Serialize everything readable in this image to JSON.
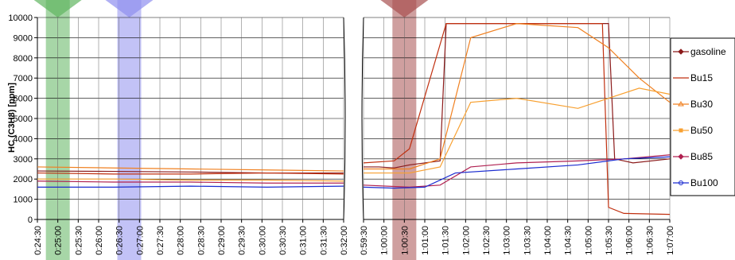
{
  "chart_data": {
    "type": "line",
    "ylabel": "HC (C3H8) [ppm]",
    "ylim": [
      0,
      10000
    ],
    "y_ticks": [
      "0",
      "1000",
      "2000",
      "3000",
      "4000",
      "5000",
      "6000",
      "7000",
      "8000",
      "9000",
      "10000"
    ],
    "x_ticks_left": [
      "0:24:30",
      "0:25:00",
      "0:25:30",
      "0:26:00",
      "0:26:30",
      "0:27:00",
      "0:27:30",
      "0:28:00",
      "0:28:30",
      "0:29:00",
      "0:29:30",
      "0:30:00",
      "0:30:30",
      "0:31:00",
      "0:31:30",
      "0:32:00"
    ],
    "x_ticks_right": [
      "0:59:30",
      "1:00:00",
      "1:00:30",
      "1:01:00",
      "1:01:30",
      "1:02:00",
      "1:02:30",
      "1:03:00",
      "1:03:30",
      "1:04:00",
      "1:04:30",
      "1:05:00",
      "1:05:30",
      "1:06:00",
      "1:06:30",
      "1:07:00"
    ],
    "legend_position": "right",
    "grid": true,
    "highlight_bands": [
      {
        "color": "#5fb55f",
        "panel": "left",
        "at": "0:25:00"
      },
      {
        "color": "#8f8fef",
        "panel": "left",
        "at": "0:26:45"
      },
      {
        "color": "#a85050",
        "panel": "right",
        "at": "1:00:30"
      }
    ],
    "series": [
      {
        "name": "gasoline",
        "color": "#8b1a1a",
        "marker": "diamond",
        "left": [
          [
            0.0,
            2400
          ],
          [
            0.25,
            2380
          ],
          [
            0.5,
            2350
          ],
          [
            0.75,
            2300
          ],
          [
            1.0,
            2300
          ]
        ],
        "right": [
          [
            0.0,
            2600
          ],
          [
            0.05,
            2600
          ],
          [
            0.1,
            2550
          ],
          [
            0.15,
            2700
          ],
          [
            0.25,
            2900
          ],
          [
            0.27,
            9700
          ],
          [
            0.8,
            9700
          ],
          [
            0.82,
            3000
          ],
          [
            0.88,
            2800
          ],
          [
            1.0,
            3000
          ]
        ]
      },
      {
        "name": "Bu15",
        "color": "#c03010",
        "marker": "none",
        "left": [
          [
            0.0,
            2300
          ],
          [
            0.25,
            2250
          ],
          [
            0.5,
            2250
          ],
          [
            0.75,
            2300
          ],
          [
            1.0,
            2250
          ]
        ],
        "right": [
          [
            0.0,
            2800
          ],
          [
            0.1,
            2900
          ],
          [
            0.15,
            3500
          ],
          [
            0.27,
            9700
          ],
          [
            0.6,
            9700
          ],
          [
            0.78,
            9700
          ],
          [
            0.8,
            600
          ],
          [
            0.85,
            300
          ],
          [
            1.0,
            250
          ]
        ]
      },
      {
        "name": "Bu30",
        "color": "#f08020",
        "marker": "triangle",
        "left": [
          [
            0.0,
            2600
          ],
          [
            0.25,
            2550
          ],
          [
            0.5,
            2500
          ],
          [
            0.75,
            2450
          ],
          [
            1.0,
            2400
          ]
        ],
        "right": [
          [
            0.0,
            2500
          ],
          [
            0.15,
            2500
          ],
          [
            0.25,
            3000
          ],
          [
            0.35,
            9000
          ],
          [
            0.5,
            9700
          ],
          [
            0.7,
            9500
          ],
          [
            0.8,
            8500
          ],
          [
            0.9,
            7000
          ],
          [
            1.0,
            5800
          ]
        ]
      },
      {
        "name": "Bu50",
        "color": "#f8a030",
        "marker": "square",
        "left": [
          [
            0.0,
            2000
          ],
          [
            0.25,
            2000
          ],
          [
            0.5,
            1950
          ],
          [
            0.75,
            1950
          ],
          [
            1.0,
            1900
          ]
        ],
        "right": [
          [
            0.0,
            2300
          ],
          [
            0.15,
            2300
          ],
          [
            0.25,
            2600
          ],
          [
            0.35,
            5800
          ],
          [
            0.5,
            6000
          ],
          [
            0.7,
            5500
          ],
          [
            0.8,
            6000
          ],
          [
            0.9,
            6500
          ],
          [
            1.0,
            6200
          ]
        ]
      },
      {
        "name": "Bu85",
        "color": "#b02050",
        "marker": "diamond",
        "left": [
          [
            0.0,
            1900
          ],
          [
            0.25,
            1850
          ],
          [
            0.5,
            1850
          ],
          [
            0.75,
            1800
          ],
          [
            1.0,
            1800
          ]
        ],
        "right": [
          [
            0.0,
            1700
          ],
          [
            0.15,
            1600
          ],
          [
            0.25,
            1700
          ],
          [
            0.35,
            2600
          ],
          [
            0.5,
            2800
          ],
          [
            0.7,
            2900
          ],
          [
            0.85,
            3000
          ],
          [
            1.0,
            3200
          ]
        ]
      },
      {
        "name": "Bu100",
        "color": "#1a2bd0",
        "marker": "circle",
        "left": [
          [
            0.0,
            1600
          ],
          [
            0.25,
            1600
          ],
          [
            0.5,
            1650
          ],
          [
            0.75,
            1600
          ],
          [
            1.0,
            1650
          ]
        ],
        "right": [
          [
            0.0,
            1600
          ],
          [
            0.1,
            1550
          ],
          [
            0.2,
            1600
          ],
          [
            0.3,
            2300
          ],
          [
            0.5,
            2500
          ],
          [
            0.7,
            2700
          ],
          [
            0.85,
            3000
          ],
          [
            1.0,
            3100
          ]
        ]
      }
    ]
  }
}
